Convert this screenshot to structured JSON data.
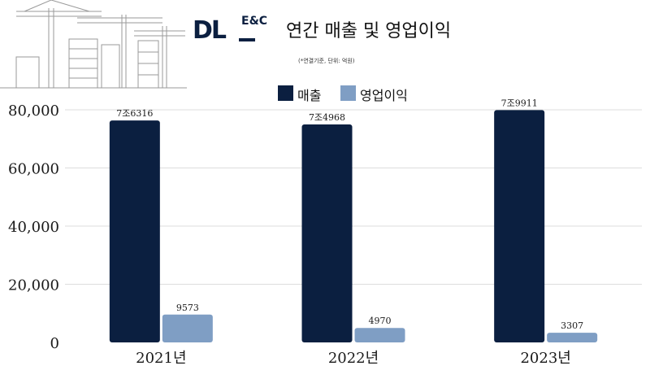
{
  "header": {
    "logo_main": "DL",
    "logo_sub": "E&C",
    "title": "연간 매출 및 영업이익",
    "note": "(*연결기준, 단위: 억원)"
  },
  "colors": {
    "revenue": "#0b1f40",
    "operating_profit": "#7f9ec4",
    "grid": "#dddddd",
    "text": "#1a1a1a"
  },
  "chart_data": {
    "type": "bar",
    "categories": [
      "2021년",
      "2022년",
      "2023년"
    ],
    "series": [
      {
        "name": "매출",
        "values": [
          76316,
          74968,
          79911
        ],
        "labels": [
          "7조6316",
          "7조4968",
          "7조9911"
        ]
      },
      {
        "name": "영업이익",
        "values": [
          9573,
          4970,
          3307
        ],
        "labels": [
          "9573",
          "4970",
          "3307"
        ]
      }
    ],
    "yticks": [
      "0",
      "20,000",
      "40,000",
      "60,000",
      "80,000"
    ],
    "ylim": [
      0,
      80000
    ],
    "grid": true,
    "legend_position": "top-center",
    "title": "연간 매출 및 영업이익",
    "xlabel": "",
    "ylabel": ""
  }
}
